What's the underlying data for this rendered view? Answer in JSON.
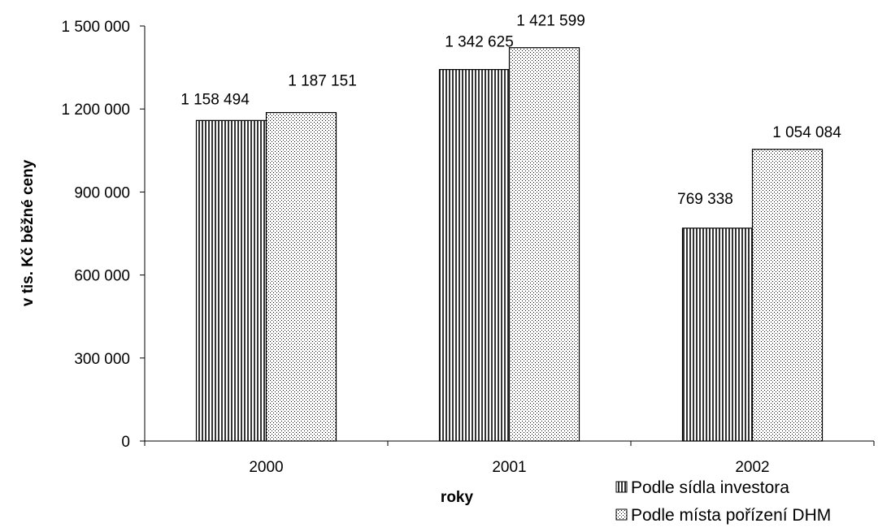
{
  "chart_data": {
    "type": "bar",
    "title": "",
    "xlabel": "roky",
    "ylabel": "v tis. Kč běžné ceny",
    "categories": [
      "2000",
      "2001",
      "2002"
    ],
    "series": [
      {
        "name": "Podle sídla investora",
        "values": [
          1158494,
          1342625,
          769338
        ],
        "pattern": "vertical-stripes",
        "color": "#000000"
      },
      {
        "name": "Podle místa pořízení DHM",
        "values": [
          1187151,
          1421599,
          1054084
        ],
        "pattern": "dots",
        "color": "#000000"
      }
    ],
    "data_labels": [
      [
        "1 158 494",
        "1 342 625",
        "769 338"
      ],
      [
        "1 187 151",
        "1 421 599",
        "1 054 084"
      ]
    ],
    "ylim": [
      0,
      1500000
    ],
    "yticks": [
      0,
      300000,
      600000,
      900000,
      1200000,
      1500000
    ],
    "ytick_labels": [
      "0",
      "300 000",
      "600 000",
      "900 000",
      "1 200 000",
      "1 500 000"
    ],
    "grid": false,
    "legend_position": "bottom-right"
  }
}
